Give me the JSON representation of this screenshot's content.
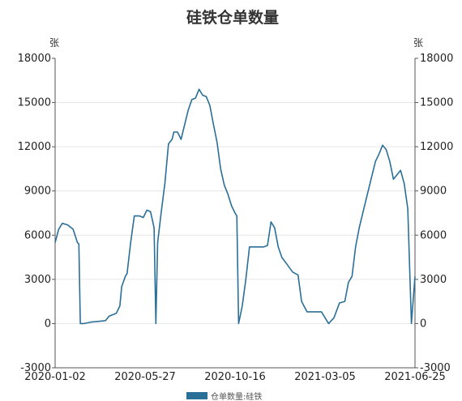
{
  "chart_data": {
    "type": "line",
    "title": "硅铁仓单数量",
    "left_unit": "张",
    "right_unit": "张",
    "ylim": [
      -3000,
      18000
    ],
    "y_ticks": [
      "18000",
      "15000",
      "12000",
      "9000",
      "6000",
      "3000",
      "0",
      "-3000"
    ],
    "x_ticks": [
      "2020-01-02",
      "2020-05-27",
      "2020-10-16",
      "2021-03-05",
      "2021-06-25"
    ],
    "grid": true,
    "legend_position": "bottom",
    "color": "#2a6f97",
    "series": [
      {
        "name": "仓单数量:硅铁",
        "points": [
          [
            0.0,
            5500
          ],
          [
            0.01,
            6400
          ],
          [
            0.02,
            6800
          ],
          [
            0.035,
            6700
          ],
          [
            0.05,
            6400
          ],
          [
            0.062,
            5500
          ],
          [
            0.066,
            5400
          ],
          [
            0.07,
            0
          ],
          [
            0.08,
            0
          ],
          [
            0.1,
            100
          ],
          [
            0.14,
            200
          ],
          [
            0.15,
            500
          ],
          [
            0.17,
            700
          ],
          [
            0.18,
            1200
          ],
          [
            0.185,
            2500
          ],
          [
            0.195,
            3200
          ],
          [
            0.2,
            3400
          ],
          [
            0.21,
            5500
          ],
          [
            0.22,
            7300
          ],
          [
            0.235,
            7300
          ],
          [
            0.245,
            7200
          ],
          [
            0.255,
            7700
          ],
          [
            0.265,
            7600
          ],
          [
            0.275,
            6500
          ],
          [
            0.28,
            0
          ],
          [
            0.285,
            5500
          ],
          [
            0.295,
            7600
          ],
          [
            0.305,
            9500
          ],
          [
            0.315,
            12200
          ],
          [
            0.325,
            12500
          ],
          [
            0.33,
            13000
          ],
          [
            0.34,
            13000
          ],
          [
            0.35,
            12500
          ],
          [
            0.36,
            13500
          ],
          [
            0.37,
            14500
          ],
          [
            0.38,
            15200
          ],
          [
            0.39,
            15300
          ],
          [
            0.4,
            15900
          ],
          [
            0.41,
            15500
          ],
          [
            0.42,
            15400
          ],
          [
            0.43,
            14800
          ],
          [
            0.44,
            13500
          ],
          [
            0.45,
            12300
          ],
          [
            0.46,
            10500
          ],
          [
            0.47,
            9400
          ],
          [
            0.48,
            8800
          ],
          [
            0.49,
            8000
          ],
          [
            0.5,
            7500
          ],
          [
            0.505,
            7300
          ],
          [
            0.51,
            0
          ],
          [
            0.52,
            1200
          ],
          [
            0.53,
            3000
          ],
          [
            0.54,
            5200
          ],
          [
            0.56,
            5200
          ],
          [
            0.58,
            5200
          ],
          [
            0.59,
            5300
          ],
          [
            0.6,
            6900
          ],
          [
            0.61,
            6500
          ],
          [
            0.62,
            5200
          ],
          [
            0.63,
            4500
          ],
          [
            0.645,
            4000
          ],
          [
            0.66,
            3500
          ],
          [
            0.675,
            3300
          ],
          [
            0.685,
            1500
          ],
          [
            0.7,
            800
          ],
          [
            0.74,
            800
          ],
          [
            0.75,
            400
          ],
          [
            0.76,
            0
          ],
          [
            0.775,
            400
          ],
          [
            0.79,
            1400
          ],
          [
            0.805,
            1500
          ],
          [
            0.815,
            2800
          ],
          [
            0.825,
            3200
          ],
          [
            0.835,
            5200
          ],
          [
            0.845,
            6500
          ],
          [
            0.86,
            8000
          ],
          [
            0.875,
            9500
          ],
          [
            0.89,
            11000
          ],
          [
            0.9,
            11500
          ],
          [
            0.91,
            12100
          ],
          [
            0.92,
            11800
          ],
          [
            0.93,
            11000
          ],
          [
            0.94,
            9800
          ],
          [
            0.95,
            10100
          ],
          [
            0.96,
            10400
          ],
          [
            0.97,
            9500
          ],
          [
            0.98,
            7800
          ],
          [
            0.99,
            0
          ],
          [
            1.0,
            3200
          ]
        ]
      }
    ]
  }
}
